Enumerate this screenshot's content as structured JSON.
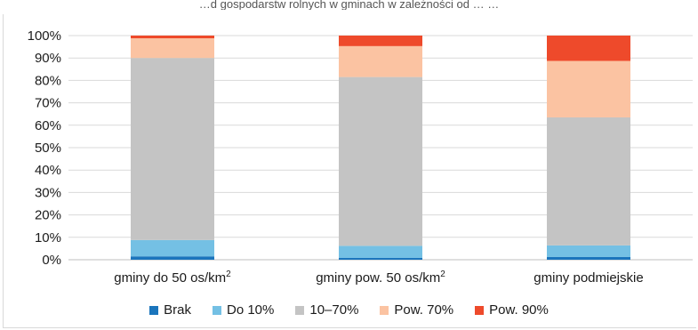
{
  "page": {
    "title": "…d gospodarstw rolnych w gminach w zależności od … …"
  },
  "chart_data": {
    "type": "bar",
    "stacked": true,
    "percent": true,
    "title": "",
    "xlabel": "",
    "ylabel": "",
    "ylim": [
      0,
      100
    ],
    "y_ticks": [
      "0%",
      "10%",
      "20%",
      "30%",
      "40%",
      "50%",
      "60%",
      "70%",
      "80%",
      "90%",
      "100%"
    ],
    "grid": true,
    "legend_position": "bottom",
    "categories": [
      {
        "pre": "gminy do 50 os/km",
        "sup": "2"
      },
      {
        "pre": "gminy pow. 50 os/km",
        "sup": "2"
      },
      {
        "pre": "gminy podmiejskie",
        "sup": ""
      }
    ],
    "series": [
      {
        "name": "Brak",
        "color": "#1b75bc",
        "values": [
          1.5,
          0.8,
          1.2
        ]
      },
      {
        "name": "Do 10%",
        "color": "#74c0e4",
        "values": [
          7.3,
          5.4,
          5.2
        ]
      },
      {
        "name": "10–70%",
        "color": "#c4c4c4",
        "values": [
          81.2,
          75.3,
          57.1
        ]
      },
      {
        "name": "Pow. 70%",
        "color": "#fbc3a2",
        "values": [
          8.8,
          13.8,
          25.2
        ]
      },
      {
        "name": "Pow. 90%",
        "color": "#ee4a2b",
        "values": [
          1.2,
          4.7,
          11.3
        ]
      }
    ]
  }
}
